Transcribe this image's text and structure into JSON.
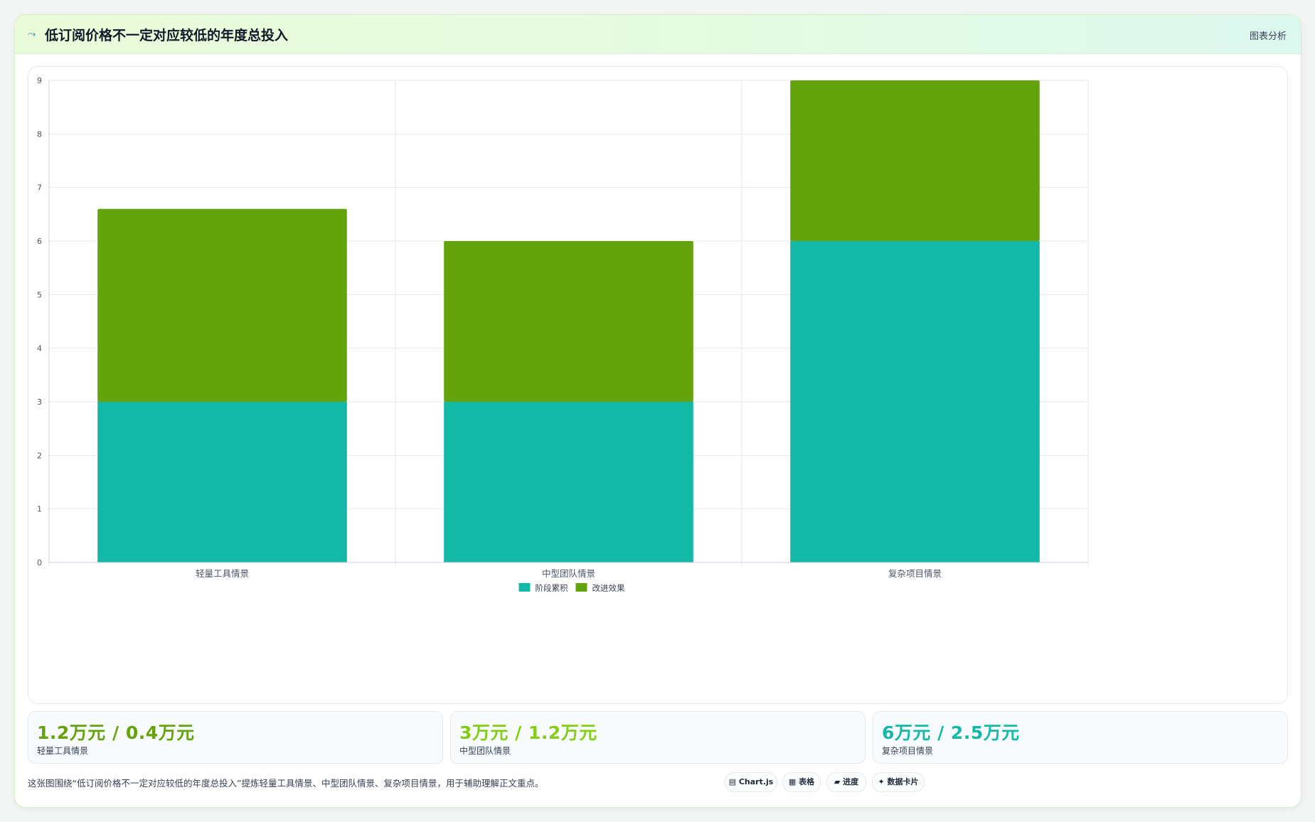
{
  "header": {
    "icon": "trend-icon",
    "title": "低订阅价格不一定对应较低的年度总投入",
    "tag": "图表分析"
  },
  "chart_data": {
    "type": "bar",
    "stacked": true,
    "categories": [
      "轻量工具情景",
      "中型团队情景",
      "复杂项目情景"
    ],
    "series": [
      {
        "name": "阶段累积",
        "values": [
          3,
          3,
          6
        ],
        "color": "#14b8a6"
      },
      {
        "name": "改进效果",
        "values": [
          3.6,
          3,
          3
        ],
        "color": "#65a30d"
      }
    ],
    "ylim": [
      0,
      9
    ],
    "yticks": [
      "0",
      "1",
      "2",
      "3",
      "4",
      "5",
      "6",
      "7",
      "8",
      "9"
    ],
    "grid": true,
    "legend": "bottom"
  },
  "stats": [
    {
      "value": "1.2万元 / 0.4万元",
      "label": "轻量工具情景",
      "color": "#65a30d"
    },
    {
      "value": "3万元 / 1.2万元",
      "label": "中型团队情景",
      "color": "#84cc16"
    },
    {
      "value": "6万元 / 2.5万元",
      "label": "复杂项目情景",
      "color": "#14b8a6"
    }
  ],
  "footer": {
    "text": "这张图围绕“低订阅价格不一定对应较低的年度总投入”提炼轻量工具情景、中型团队情景、复杂项目情景，用于辅助理解正文重点。"
  },
  "chips": [
    {
      "icon": "chart-icon",
      "label": "▤ Chart.js"
    },
    {
      "icon": "table-icon",
      "label": "▦ 表格"
    },
    {
      "icon": "progress-icon",
      "label": "▰ 进度"
    },
    {
      "icon": "card-icon",
      "label": "✦ 数据卡片"
    }
  ]
}
